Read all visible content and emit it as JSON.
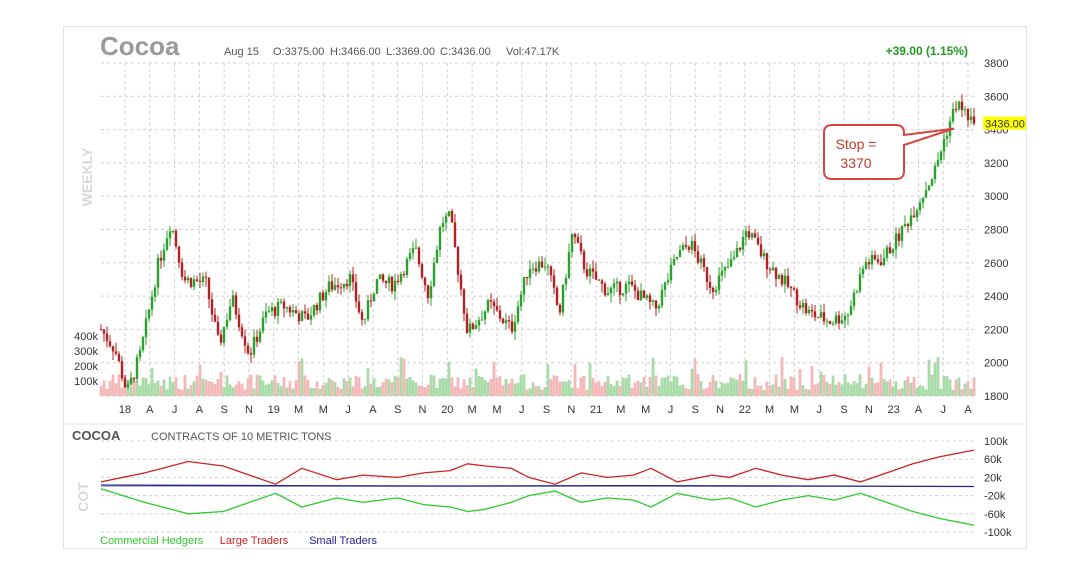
{
  "header": {
    "symbol": "Cocoa",
    "date": "Aug 15",
    "open": "O:3375.00",
    "high": "H:3466.00",
    "low": "L:3369.00",
    "close": "C:3436.00",
    "volume": "Vol:47.17K",
    "change": "+39.00 (1.15%)",
    "last_price_label": "3436.00",
    "watermark": "WEEKLY"
  },
  "annotation": {
    "line1": "Stop =",
    "line2": "3370",
    "price": 3370
  },
  "cot": {
    "symbol": "COCOA",
    "subtitle": "CONTRACTS OF 10 METRIC TONS",
    "watermark": "COT"
  },
  "colors": {
    "up": "#2ca02c",
    "down": "#b22222",
    "vol_up": "#a8dba8",
    "vol_down": "#f4b8b8",
    "grid": "#d0d0d0",
    "last_price_bg": "#ffff00",
    "callout_border": "#d64541",
    "commercial": "#2ecc2e",
    "large": "#cc2222",
    "small": "#22229a"
  },
  "chart_data": [
    {
      "type": "candlestick",
      "title": "Cocoa",
      "timeframe": "weekly",
      "y_ticks": [
        1800,
        2000,
        2200,
        2400,
        2600,
        2800,
        3000,
        3200,
        3400,
        3600,
        3800
      ],
      "ylim": [
        1800,
        3800
      ],
      "x_ticks": [
        "18",
        "A",
        "J",
        "A",
        "S",
        "N",
        "19",
        "M",
        "M",
        "J",
        "A",
        "S",
        "N",
        "20",
        "M",
        "M",
        "J",
        "S",
        "N",
        "21",
        "M",
        "M",
        "J",
        "S",
        "N",
        "22",
        "M",
        "M",
        "J",
        "S",
        "N",
        "23",
        "A",
        "J",
        "A"
      ],
      "path": [
        {
          "t": 0,
          "p": 2200
        },
        {
          "t": 0.016,
          "p": 2080
        },
        {
          "t": 0.03,
          "p": 1820
        },
        {
          "t": 0.045,
          "p": 2050
        },
        {
          "t": 0.065,
          "p": 2580
        },
        {
          "t": 0.08,
          "p": 2850
        },
        {
          "t": 0.095,
          "p": 2500
        },
        {
          "t": 0.12,
          "p": 2480
        },
        {
          "t": 0.135,
          "p": 2100
        },
        {
          "t": 0.15,
          "p": 2390
        },
        {
          "t": 0.17,
          "p": 2050
        },
        {
          "t": 0.19,
          "p": 2300
        },
        {
          "t": 0.21,
          "p": 2340
        },
        {
          "t": 0.235,
          "p": 2260
        },
        {
          "t": 0.26,
          "p": 2450
        },
        {
          "t": 0.285,
          "p": 2510
        },
        {
          "t": 0.3,
          "p": 2230
        },
        {
          "t": 0.315,
          "p": 2490
        },
        {
          "t": 0.335,
          "p": 2470
        },
        {
          "t": 0.36,
          "p": 2680
        },
        {
          "t": 0.375,
          "p": 2410
        },
        {
          "t": 0.39,
          "p": 2850
        },
        {
          "t": 0.4,
          "p": 2870
        },
        {
          "t": 0.42,
          "p": 2180
        },
        {
          "t": 0.445,
          "p": 2350
        },
        {
          "t": 0.47,
          "p": 2200
        },
        {
          "t": 0.49,
          "p": 2580
        },
        {
          "t": 0.51,
          "p": 2600
        },
        {
          "t": 0.525,
          "p": 2290
        },
        {
          "t": 0.54,
          "p": 2780
        },
        {
          "t": 0.555,
          "p": 2560
        },
        {
          "t": 0.58,
          "p": 2430
        },
        {
          "t": 0.605,
          "p": 2460
        },
        {
          "t": 0.635,
          "p": 2320
        },
        {
          "t": 0.66,
          "p": 2640
        },
        {
          "t": 0.675,
          "p": 2720
        },
        {
          "t": 0.7,
          "p": 2450
        },
        {
          "t": 0.725,
          "p": 2620
        },
        {
          "t": 0.74,
          "p": 2800
        },
        {
          "t": 0.76,
          "p": 2620
        },
        {
          "t": 0.785,
          "p": 2470
        },
        {
          "t": 0.81,
          "p": 2300
        },
        {
          "t": 0.835,
          "p": 2250
        },
        {
          "t": 0.855,
          "p": 2290
        },
        {
          "t": 0.875,
          "p": 2600
        },
        {
          "t": 0.895,
          "p": 2620
        },
        {
          "t": 0.915,
          "p": 2770
        },
        {
          "t": 0.935,
          "p": 2950
        },
        {
          "t": 0.955,
          "p": 3150
        },
        {
          "t": 0.968,
          "p": 3380
        },
        {
          "t": 0.98,
          "p": 3560
        },
        {
          "t": 1,
          "p": 3436
        }
      ],
      "volume": {
        "y_ticks": [
          "100k",
          "200k",
          "300k",
          "400k"
        ],
        "range": [
          0,
          400000
        ]
      }
    },
    {
      "type": "line",
      "title": "COCOA",
      "subtitle": "CONTRACTS OF 10 METRIC TONS",
      "y_ticks": [
        "100k",
        "60k",
        "20k",
        "-20k",
        "-60k",
        "-100k"
      ],
      "ylim": [
        -100000,
        100000
      ],
      "series": [
        {
          "name": "Commercial Hedgers",
          "color": "#2ecc2e",
          "points": [
            [
              0,
              -5000
            ],
            [
              0.05,
              -35000
            ],
            [
              0.1,
              -60000
            ],
            [
              0.14,
              -55000
            ],
            [
              0.17,
              -35000
            ],
            [
              0.2,
              -15000
            ],
            [
              0.23,
              -45000
            ],
            [
              0.27,
              -25000
            ],
            [
              0.3,
              -35000
            ],
            [
              0.34,
              -25000
            ],
            [
              0.37,
              -40000
            ],
            [
              0.4,
              -45000
            ],
            [
              0.42,
              -55000
            ],
            [
              0.44,
              -50000
            ],
            [
              0.47,
              -35000
            ],
            [
              0.49,
              -20000
            ],
            [
              0.52,
              -10000
            ],
            [
              0.55,
              -35000
            ],
            [
              0.58,
              -25000
            ],
            [
              0.61,
              -30000
            ],
            [
              0.63,
              -45000
            ],
            [
              0.66,
              -15000
            ],
            [
              0.7,
              -30000
            ],
            [
              0.72,
              -25000
            ],
            [
              0.75,
              -45000
            ],
            [
              0.78,
              -30000
            ],
            [
              0.81,
              -20000
            ],
            [
              0.84,
              -30000
            ],
            [
              0.87,
              -15000
            ],
            [
              0.9,
              -35000
            ],
            [
              0.93,
              -55000
            ],
            [
              0.96,
              -70000
            ],
            [
              1,
              -85000
            ]
          ]
        },
        {
          "name": "Large Traders",
          "color": "#cc2222",
          "points": [
            [
              0,
              10000
            ],
            [
              0.05,
              30000
            ],
            [
              0.1,
              55000
            ],
            [
              0.14,
              45000
            ],
            [
              0.17,
              25000
            ],
            [
              0.2,
              5000
            ],
            [
              0.23,
              40000
            ],
            [
              0.27,
              15000
            ],
            [
              0.3,
              25000
            ],
            [
              0.34,
              20000
            ],
            [
              0.37,
              30000
            ],
            [
              0.4,
              35000
            ],
            [
              0.42,
              50000
            ],
            [
              0.44,
              45000
            ],
            [
              0.47,
              40000
            ],
            [
              0.49,
              20000
            ],
            [
              0.52,
              5000
            ],
            [
              0.55,
              30000
            ],
            [
              0.58,
              20000
            ],
            [
              0.61,
              25000
            ],
            [
              0.63,
              40000
            ],
            [
              0.66,
              10000
            ],
            [
              0.7,
              25000
            ],
            [
              0.72,
              20000
            ],
            [
              0.75,
              40000
            ],
            [
              0.78,
              25000
            ],
            [
              0.81,
              15000
            ],
            [
              0.84,
              25000
            ],
            [
              0.87,
              10000
            ],
            [
              0.9,
              30000
            ],
            [
              0.93,
              50000
            ],
            [
              0.96,
              65000
            ],
            [
              1,
              80000
            ]
          ]
        },
        {
          "name": "Small Traders",
          "color": "#22229a",
          "points": [
            [
              0,
              3000
            ],
            [
              0.2,
              2000
            ],
            [
              0.4,
              1000
            ],
            [
              0.6,
              2000
            ],
            [
              0.8,
              1000
            ],
            [
              1,
              0
            ]
          ]
        }
      ]
    }
  ]
}
